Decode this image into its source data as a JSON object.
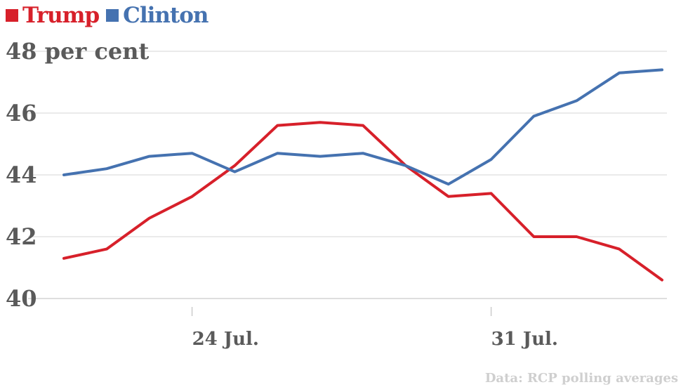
{
  "chart_data": {
    "type": "line",
    "title": "",
    "xlabel": "",
    "ylabel": "",
    "x": [
      0,
      1,
      2,
      3,
      4,
      5,
      6,
      7,
      8,
      9,
      10,
      11,
      12,
      13,
      14
    ],
    "x_tick_labels": [
      {
        "x": 3,
        "label": "24 Jul."
      },
      {
        "x": 10,
        "label": "31 Jul."
      }
    ],
    "y_tick_labels": [
      "40",
      "42",
      "44",
      "46",
      "48 per cent"
    ],
    "y_ticks": [
      40,
      42,
      44,
      46,
      48
    ],
    "ylim": [
      40,
      48
    ],
    "grid": "horizontal",
    "legend_position": "top-left",
    "series": [
      {
        "name": "Trump",
        "color": "#d7202a",
        "values": [
          41.3,
          41.6,
          42.6,
          43.3,
          44.3,
          45.6,
          45.7,
          45.6,
          44.3,
          43.3,
          43.4,
          42.0,
          42.0,
          41.6,
          40.6
        ]
      },
      {
        "name": "Clinton",
        "color": "#4572b0",
        "values": [
          44.0,
          44.2,
          44.6,
          44.7,
          44.1,
          44.7,
          44.6,
          44.7,
          44.3,
          43.7,
          44.5,
          45.9,
          46.4,
          47.3,
          47.4
        ]
      }
    ]
  },
  "source_text": "Data: RCP polling averages"
}
